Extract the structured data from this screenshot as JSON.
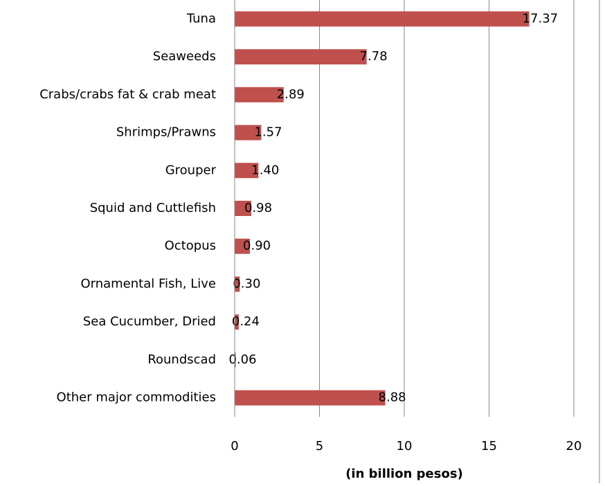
{
  "chart_data": {
    "type": "barh",
    "xlabel": "(in billion pesos)",
    "categories": [
      "Tuna",
      "Seaweeds",
      "Crabs/crabs fat & crab meat",
      "Shrimps/Prawns",
      "Grouper",
      "Squid and Cuttlefish",
      "Octopus",
      "Ornamental Fish, Live",
      "Sea Cucumber, Dried",
      "Roundscad",
      "Other major commodities"
    ],
    "values": [
      17.37,
      7.78,
      2.89,
      1.57,
      1.4,
      0.98,
      0.9,
      0.3,
      0.24,
      0.06,
      8.88
    ],
    "value_labels": [
      "17.37",
      "7.78",
      "2.89",
      "1.57",
      "1.40",
      "0.98",
      "0.90",
      "0.30",
      "0.24",
      "0.06",
      "8.88"
    ],
    "color": "#c0504d",
    "xlim": [
      0,
      20
    ],
    "xticks": [
      0,
      5,
      10,
      15,
      20
    ],
    "grid": true
  }
}
